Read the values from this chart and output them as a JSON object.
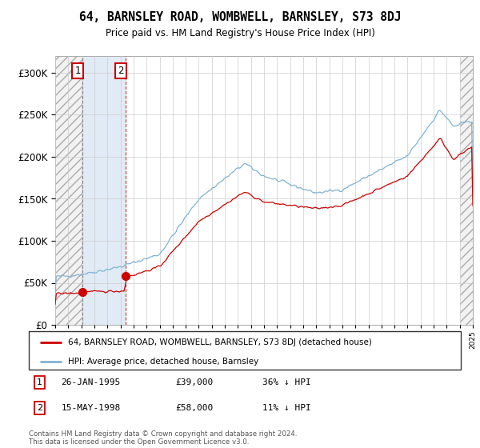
{
  "title": "64, BARNSLEY ROAD, WOMBWELL, BARNSLEY, S73 8DJ",
  "subtitle": "Price paid vs. HM Land Registry's House Price Index (HPI)",
  "transaction_info": [
    {
      "num": "1",
      "date": "26-JAN-1995",
      "price": "£39,000",
      "diff": "36% ↓ HPI"
    },
    {
      "num": "2",
      "date": "15-MAY-1998",
      "price": "£58,000",
      "diff": "11% ↓ HPI"
    }
  ],
  "legend_line1": "64, BARNSLEY ROAD, WOMBWELL, BARNSLEY, S73 8DJ (detached house)",
  "legend_line2": "HPI: Average price, detached house, Barnsley",
  "footer": "Contains HM Land Registry data © Crown copyright and database right 2024.\nThis data is licensed under the Open Government Licence v3.0.",
  "line_color_red": "#cc0000",
  "line_color_blue": "#7fb3d3",
  "dot_color": "#cc0000",
  "grid_color": "#cccccc",
  "hatch_color": "#dddddd",
  "shade_color": "#dce8f4",
  "ylim": [
    0,
    320000
  ],
  "yticks": [
    0,
    50000,
    100000,
    150000,
    200000,
    250000,
    300000
  ],
  "ytick_labels": [
    "£0",
    "£50K",
    "£100K",
    "£150K",
    "£200K",
    "£250K",
    "£300K"
  ],
  "xstart_year": 1993,
  "xend_year": 2025,
  "transaction1_x": 1995.07,
  "transaction2_x": 1998.38,
  "transaction1_price": 39000,
  "transaction2_price": 58000
}
